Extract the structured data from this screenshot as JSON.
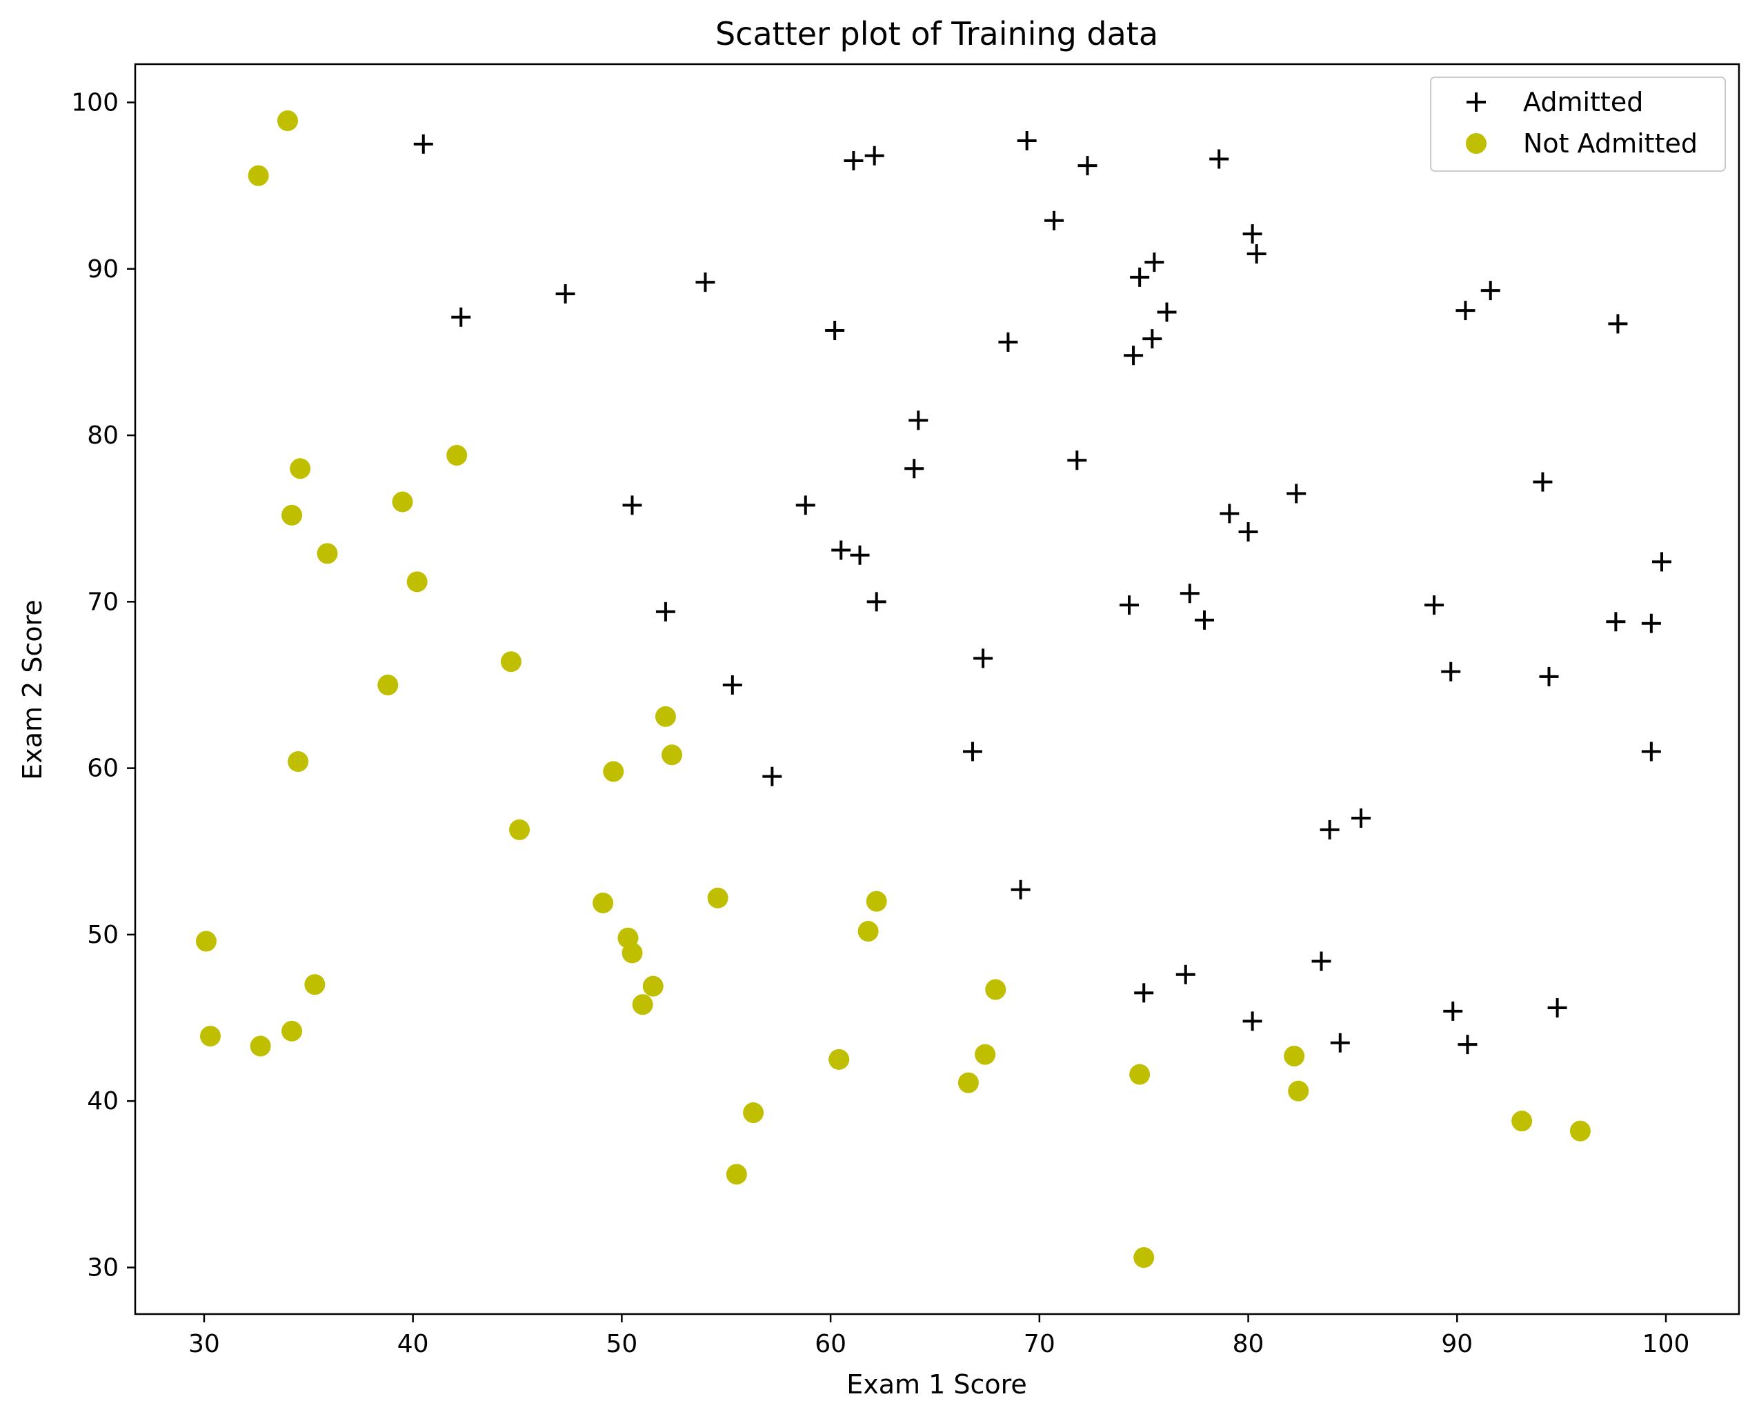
{
  "chart_data": {
    "type": "scatter",
    "title": "Scatter plot of Training data",
    "xlabel": "Exam 1 Score",
    "ylabel": "Exam 2 Score",
    "xlim": [
      26.7,
      103.5
    ],
    "ylim": [
      27.2,
      102.3
    ],
    "xticks": [
      30,
      40,
      50,
      60,
      70,
      80,
      90,
      100
    ],
    "yticks": [
      30,
      40,
      50,
      60,
      70,
      80,
      90,
      100
    ],
    "grid": false,
    "legend_position": "top-right",
    "series": [
      {
        "name": "Admitted",
        "marker": "plus",
        "color": "#000000",
        "points": [
          [
            40.5,
            97.5
          ],
          [
            61.1,
            96.5
          ],
          [
            62.1,
            96.8
          ],
          [
            69.4,
            97.7
          ],
          [
            72.3,
            96.2
          ],
          [
            78.6,
            96.6
          ],
          [
            70.7,
            92.9
          ],
          [
            80.2,
            92.1
          ],
          [
            80.4,
            90.9
          ],
          [
            75.5,
            90.4
          ],
          [
            74.8,
            89.5
          ],
          [
            42.3,
            87.1
          ],
          [
            47.3,
            88.5
          ],
          [
            54.0,
            89.2
          ],
          [
            60.2,
            86.3
          ],
          [
            68.5,
            85.6
          ],
          [
            74.5,
            84.8
          ],
          [
            75.4,
            85.8
          ],
          [
            76.1,
            87.4
          ],
          [
            90.4,
            87.5
          ],
          [
            91.6,
            88.7
          ],
          [
            97.7,
            86.7
          ],
          [
            64.2,
            80.9
          ],
          [
            64.0,
            78.0
          ],
          [
            71.8,
            78.5
          ],
          [
            82.3,
            76.5
          ],
          [
            94.1,
            77.2
          ],
          [
            79.1,
            75.3
          ],
          [
            80.0,
            74.2
          ],
          [
            50.5,
            75.8
          ],
          [
            58.8,
            75.8
          ],
          [
            60.5,
            73.1
          ],
          [
            61.4,
            72.8
          ],
          [
            99.8,
            72.4
          ],
          [
            52.1,
            69.4
          ],
          [
            62.2,
            70.0
          ],
          [
            74.3,
            69.8
          ],
          [
            77.2,
            70.5
          ],
          [
            77.9,
            68.9
          ],
          [
            88.9,
            69.8
          ],
          [
            97.6,
            68.8
          ],
          [
            99.3,
            68.7
          ],
          [
            55.3,
            65.0
          ],
          [
            67.3,
            66.6
          ],
          [
            89.7,
            65.8
          ],
          [
            94.4,
            65.5
          ],
          [
            57.2,
            59.5
          ],
          [
            66.8,
            61.0
          ],
          [
            99.3,
            61.0
          ],
          [
            83.9,
            56.3
          ],
          [
            85.4,
            57.0
          ],
          [
            69.1,
            52.7
          ],
          [
            83.5,
            48.4
          ],
          [
            75.0,
            46.5
          ],
          [
            77.0,
            47.6
          ],
          [
            80.2,
            44.8
          ],
          [
            84.4,
            43.5
          ],
          [
            89.8,
            45.4
          ],
          [
            90.5,
            43.4
          ],
          [
            94.8,
            45.6
          ]
        ]
      },
      {
        "name": "Not Admitted",
        "marker": "circle",
        "color": "#bfbf00",
        "points": [
          [
            34.0,
            98.9
          ],
          [
            32.6,
            95.6
          ],
          [
            34.6,
            78.0
          ],
          [
            42.1,
            78.8
          ],
          [
            39.5,
            76.0
          ],
          [
            34.2,
            75.2
          ],
          [
            35.9,
            72.9
          ],
          [
            40.2,
            71.2
          ],
          [
            44.7,
            66.4
          ],
          [
            38.8,
            65.0
          ],
          [
            34.5,
            60.4
          ],
          [
            52.1,
            63.1
          ],
          [
            52.4,
            60.8
          ],
          [
            49.6,
            59.8
          ],
          [
            45.1,
            56.3
          ],
          [
            49.1,
            51.9
          ],
          [
            54.6,
            52.2
          ],
          [
            62.2,
            52.0
          ],
          [
            61.8,
            50.2
          ],
          [
            50.3,
            49.8
          ],
          [
            50.5,
            48.9
          ],
          [
            51.5,
            46.9
          ],
          [
            51.0,
            45.8
          ],
          [
            67.9,
            46.7
          ],
          [
            30.1,
            49.6
          ],
          [
            30.3,
            43.9
          ],
          [
            32.7,
            43.3
          ],
          [
            34.2,
            44.2
          ],
          [
            35.3,
            47.0
          ],
          [
            60.4,
            42.5
          ],
          [
            67.4,
            42.8
          ],
          [
            66.6,
            41.1
          ],
          [
            56.3,
            39.3
          ],
          [
            55.5,
            35.6
          ],
          [
            74.8,
            41.6
          ],
          [
            82.2,
            42.7
          ],
          [
            82.4,
            40.6
          ],
          [
            93.1,
            38.8
          ],
          [
            95.9,
            38.2
          ],
          [
            75.0,
            30.6
          ]
        ]
      }
    ]
  }
}
